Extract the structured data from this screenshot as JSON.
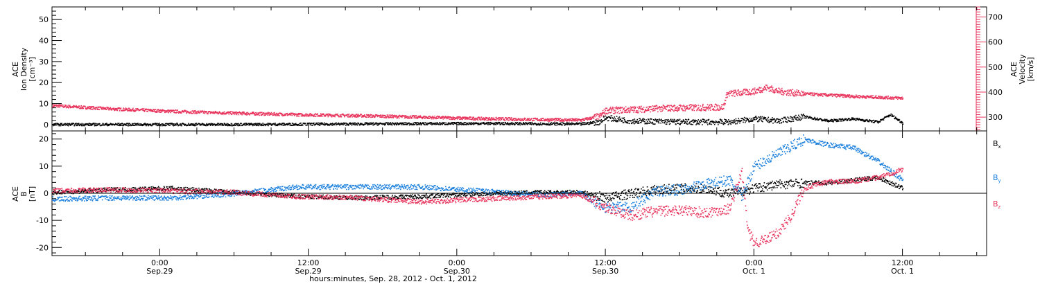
{
  "colors": {
    "density": "#000000",
    "velocity": "#e8345c",
    "bx": "#000000",
    "by": "#1a7fdc",
    "bz": "#e8345c"
  },
  "x_axis": {
    "title": "hours:minutes, Sep. 28, 2012 - Oct.  1, 2012",
    "ticks": [
      {
        "hour": 24,
        "time": "0:00",
        "date": "Sep.29"
      },
      {
        "hour": 36,
        "time": "12:00",
        "date": "Sep.29"
      },
      {
        "hour": 48,
        "time": "0:00",
        "date": "Sep.30"
      },
      {
        "hour": 60,
        "time": "12:00",
        "date": "Sep.30"
      },
      {
        "hour": 72,
        "time": "0:00",
        "date": "Oct. 1"
      },
      {
        "hour": 84,
        "time": "12:00",
        "date": "Oct. 1"
      }
    ]
  },
  "panel_top": {
    "left_axis": {
      "label_lines": [
        "ACE",
        "Ion Density",
        "[cm⁻³]"
      ],
      "ticks": [
        0,
        10,
        20,
        30,
        40,
        50
      ],
      "range": [
        -3,
        56
      ]
    },
    "right_axis": {
      "label_lines": [
        "ACE",
        "Velocity",
        "[km/s]"
      ],
      "ticks": [
        300,
        400,
        500,
        600,
        700
      ],
      "range": [
        245,
        740
      ]
    }
  },
  "panel_bottom": {
    "left_axis": {
      "label_lines": [
        "ACE",
        "B",
        "[nT]"
      ],
      "ticks": [
        -20,
        -10,
        0,
        10,
        20
      ],
      "range": [
        -23,
        23
      ]
    },
    "legend": [
      {
        "key": "bx",
        "label": "B",
        "sub": "x"
      },
      {
        "key": "by",
        "label": "B",
        "sub": "y"
      },
      {
        "key": "bz",
        "label": "B",
        "sub": "z"
      }
    ]
  },
  "chart_data": {
    "type": "scatter",
    "x_unit": "hours since Sep. 28, 2012 00:00 UT",
    "x_range": [
      15.3,
      90.8
    ],
    "series": [
      {
        "key": "velocity",
        "panel": "top",
        "axis": "right",
        "x": [
          15.3,
          20,
          25,
          30,
          35,
          40,
          45,
          50,
          55,
          58,
          59.5,
          60,
          65,
          69.5,
          69.8,
          71,
          72,
          73,
          74,
          76,
          80,
          84
        ],
        "y": [
          348,
          335,
          325,
          318,
          312,
          308,
          302,
          296,
          292,
          290,
          305,
          328,
          338,
          342,
          395,
          400,
          405,
          420,
          405,
          395,
          385,
          378
        ]
      },
      {
        "key": "density",
        "panel": "top",
        "axis": "left",
        "x": [
          15.3,
          30,
          50,
          58,
          59.5,
          60,
          62,
          66,
          70,
          72,
          74,
          76,
          78,
          80,
          82,
          83,
          84
        ],
        "y": [
          0.3,
          0.3,
          0.8,
          0.5,
          1.5,
          3.5,
          2,
          1.5,
          1.5,
          3,
          2,
          4,
          2,
          3,
          1.5,
          5,
          1
        ]
      },
      {
        "key": "bx",
        "panel": "bottom",
        "x": [
          15.3,
          20,
          25,
          30,
          35,
          40,
          45,
          50,
          55,
          58,
          60,
          62,
          64,
          66,
          68,
          70,
          72,
          74,
          76,
          78,
          80,
          82,
          84
        ],
        "y": [
          0.5,
          1.5,
          2,
          0.5,
          -1,
          -1.5,
          -1,
          0,
          0.5,
          0.5,
          -1.5,
          0,
          1.5,
          2,
          2,
          0,
          2,
          3.5,
          4,
          4,
          5,
          6,
          2
        ]
      },
      {
        "key": "by",
        "panel": "bottom",
        "x": [
          15.3,
          20,
          25,
          30,
          35,
          40,
          45,
          50,
          55,
          58,
          59,
          60,
          62,
          64,
          66,
          68,
          70,
          71,
          72,
          74,
          76,
          78,
          80,
          82,
          84
        ],
        "y": [
          -2,
          -1.5,
          -1.5,
          0,
          2.5,
          2.5,
          2.5,
          1,
          -0.5,
          0.5,
          -3,
          -5,
          -5,
          1,
          1.5,
          3.5,
          5,
          -1,
          10,
          15,
          20,
          18,
          17,
          12,
          5
        ]
      },
      {
        "key": "bz",
        "panel": "bottom",
        "x": [
          15.3,
          20,
          25,
          30,
          35,
          40,
          45,
          50,
          55,
          58,
          60,
          62,
          64,
          66,
          68,
          70,
          71,
          71.5,
          72,
          73,
          74,
          75,
          76,
          78,
          80,
          82,
          84
        ],
        "y": [
          1,
          1.5,
          1,
          0.5,
          -1,
          -1.5,
          -3,
          -2,
          -1,
          -0.5,
          -5,
          -8,
          -6.5,
          -6,
          -7,
          -5.5,
          8,
          -14,
          -18,
          -17,
          -14,
          -8,
          2,
          4.5,
          4.5,
          6,
          9
        ]
      }
    ]
  }
}
